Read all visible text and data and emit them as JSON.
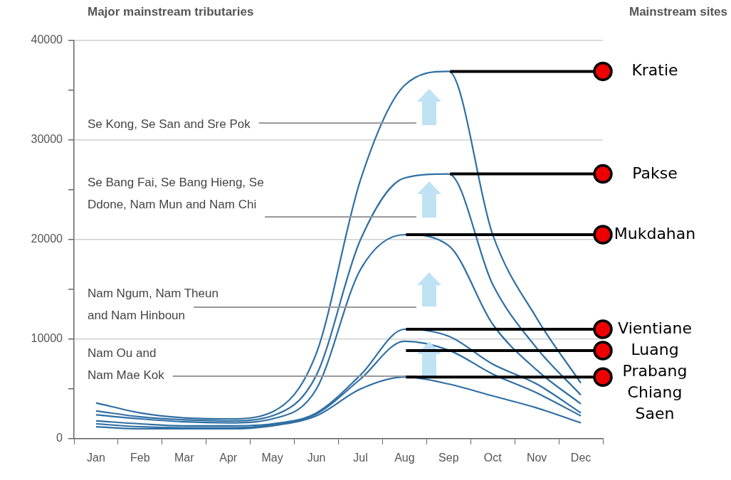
{
  "chart_data": {
    "type": "line",
    "title": "Major mainstream tributaries",
    "subtitle": "Mainstream sites",
    "categories": [
      "Jan",
      "Feb",
      "Mar",
      "Apr",
      "May",
      "Jun",
      "Jul",
      "Aug",
      "Sep",
      "Oct",
      "Nov",
      "Dec"
    ],
    "series": [
      {
        "name": "Kratie",
        "color": "#2f6fa3",
        "values": [
          3600,
          2600,
          2100,
          2000,
          2700,
          8600,
          26000,
          35500,
          36900,
          20500,
          12100,
          5600
        ]
      },
      {
        "name": "Pakse",
        "color": "#2f6fa3",
        "values": [
          2800,
          2200,
          1900,
          1800,
          2300,
          6400,
          20000,
          26200,
          26600,
          15500,
          9100,
          4400
        ]
      },
      {
        "name": "Mukdahan",
        "color": "#2f6fa3",
        "values": [
          2400,
          2000,
          1700,
          1600,
          2000,
          5000,
          17000,
          20500,
          19400,
          11500,
          6900,
          3500
        ]
      },
      {
        "name": "Vientiane",
        "color": "#2f6fa3",
        "values": [
          1800,
          1500,
          1300,
          1300,
          1500,
          2600,
          6400,
          11000,
          10300,
          7500,
          5500,
          2600
        ]
      },
      {
        "name": "Luang Prabang",
        "color": "#2f6fa3",
        "values": [
          1500,
          1200,
          1100,
          1100,
          1400,
          2500,
          6000,
          9800,
          8900,
          6500,
          4600,
          2300
        ]
      },
      {
        "name": "Chiang Saen",
        "color": "#2f6fa3",
        "values": [
          1200,
          1000,
          1000,
          1000,
          1300,
          2300,
          5000,
          6200,
          5500,
          4300,
          3100,
          1600
        ]
      }
    ],
    "ylim": [
      0,
      40000
    ],
    "yticks": [
      0,
      {
        "value": 5000,
        "label": null
      },
      10000,
      {
        "value": 15000,
        "label": null
      },
      20000,
      {
        "value": 25000,
        "label": null
      },
      30000,
      {
        "value": 35000,
        "label": null
      },
      40000
    ],
    "grid": "y",
    "legend": false,
    "marker": "none",
    "line_style": "solid",
    "annotations": [
      "Se Kong, Se San and Sre Pok",
      "Se Bang Fai, Se Bang Hieng, Se Ddone, Nam Mun and Nam Chi",
      "Nam Ngum, Nam Theun and Nam Hinboun",
      "Nam Ou and Nam Mae Kok"
    ]
  }
}
